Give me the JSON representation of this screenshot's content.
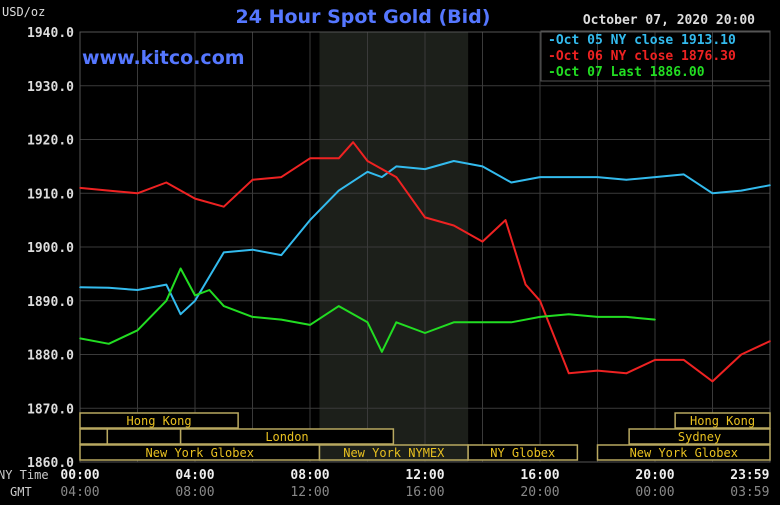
{
  "chart_data": {
    "type": "line",
    "title": "24 Hour Spot Gold (Bid)",
    "ylabel": "USD/oz",
    "watermark": "www.kitco.com",
    "timestamp": "October 07, 2020 20:00",
    "ylim": [
      1860,
      1940
    ],
    "yticks": [
      "1940.0",
      "1930.0",
      "1920.0",
      "1910.0",
      "1900.0",
      "1890.0",
      "1880.0",
      "1870.0",
      "1860.0"
    ],
    "xlim_hours": [
      0,
      24
    ],
    "xlabel_ny": "NY Time",
    "xlabel_gmt": "GMT",
    "xticks_ny": [
      "00:00",
      "04:00",
      "08:00",
      "12:00",
      "16:00",
      "20:00",
      "23:59"
    ],
    "xticks_gmt": [
      "04:00",
      "08:00",
      "12:00",
      "16:00",
      "20:00",
      "00:00",
      "03:59"
    ],
    "grid": true,
    "legend_placement": "top-right",
    "shaded_hours": [
      8.33,
      13.5
    ],
    "series": [
      {
        "name": "Oct 05 NY close 1913.10",
        "color": "#33bbee",
        "x": [
          0,
          1,
          2,
          3,
          3.5,
          4,
          5,
          6,
          7,
          8,
          9,
          10,
          10.5,
          11,
          12,
          13,
          14,
          15,
          16,
          17,
          18,
          19,
          20,
          21,
          22,
          23,
          24
        ],
        "y": [
          1892.5,
          1892.4,
          1892,
          1893,
          1887.5,
          1890,
          1899,
          1899.5,
          1898.5,
          1905,
          1910.5,
          1914,
          1913,
          1915,
          1914.5,
          1916,
          1915,
          1912,
          1913,
          1913,
          1913,
          1912.5,
          1913,
          1913.5,
          1910,
          1910.5,
          1911.5
        ]
      },
      {
        "name": "Oct 06 NY close 1876.30",
        "color": "#ee2222",
        "x": [
          0,
          1,
          2,
          3,
          4,
          5,
          6,
          7,
          8,
          9,
          9.5,
          10,
          11,
          12,
          13,
          14,
          14.8,
          15.5,
          16,
          17,
          18,
          19,
          20,
          21,
          22,
          23,
          24
        ],
        "y": [
          1911,
          1910.5,
          1910,
          1912,
          1909,
          1907.5,
          1912.5,
          1913,
          1916.5,
          1916.5,
          1919.5,
          1916,
          1913,
          1905.5,
          1904,
          1901,
          1905,
          1893,
          1890,
          1876.5,
          1877,
          1876.5,
          1879,
          1879,
          1875,
          1880,
          1882.5
        ]
      },
      {
        "name": "Oct 07 Last 1886.00",
        "color": "#22dd22",
        "x": [
          0,
          1,
          2,
          3,
          3.5,
          4,
          4.5,
          5,
          6,
          7,
          8,
          9,
          10,
          10.5,
          11,
          12,
          13,
          14,
          15,
          16,
          17,
          18,
          19,
          20
        ],
        "y": [
          1883,
          1882,
          1884.5,
          1890,
          1896,
          1891,
          1892,
          1889,
          1887,
          1886.5,
          1885.5,
          1889,
          1886,
          1880.5,
          1886,
          1884,
          1886,
          1886,
          1886,
          1887,
          1887.5,
          1887,
          1887,
          1886.5
        ]
      }
    ],
    "sessions": [
      {
        "label": "Hong Kong",
        "row": 0,
        "start": 0,
        "end": 5.5
      },
      {
        "label": "Hong Kong",
        "row": 0,
        "start": 20.7,
        "end": 24
      },
      {
        "label": "",
        "row": 1,
        "start": 0,
        "end": 0.95
      },
      {
        "label": "",
        "row": 1,
        "start": 0.95,
        "end": 3.5
      },
      {
        "label": "London",
        "row": 1,
        "start": 3.5,
        "end": 10.9
      },
      {
        "label": "Sydney",
        "row": 1,
        "start": 19.1,
        "end": 24
      },
      {
        "label": "New York Globex",
        "row": 2,
        "start": 0,
        "end": 8.33
      },
      {
        "label": "New York NYMEX",
        "row": 2,
        "start": 8.33,
        "end": 13.5
      },
      {
        "label": "NY Globex",
        "row": 2,
        "start": 13.5,
        "end": 17.3
      },
      {
        "label": "New York Globex",
        "row": 2,
        "start": 18,
        "end": 24
      }
    ]
  }
}
